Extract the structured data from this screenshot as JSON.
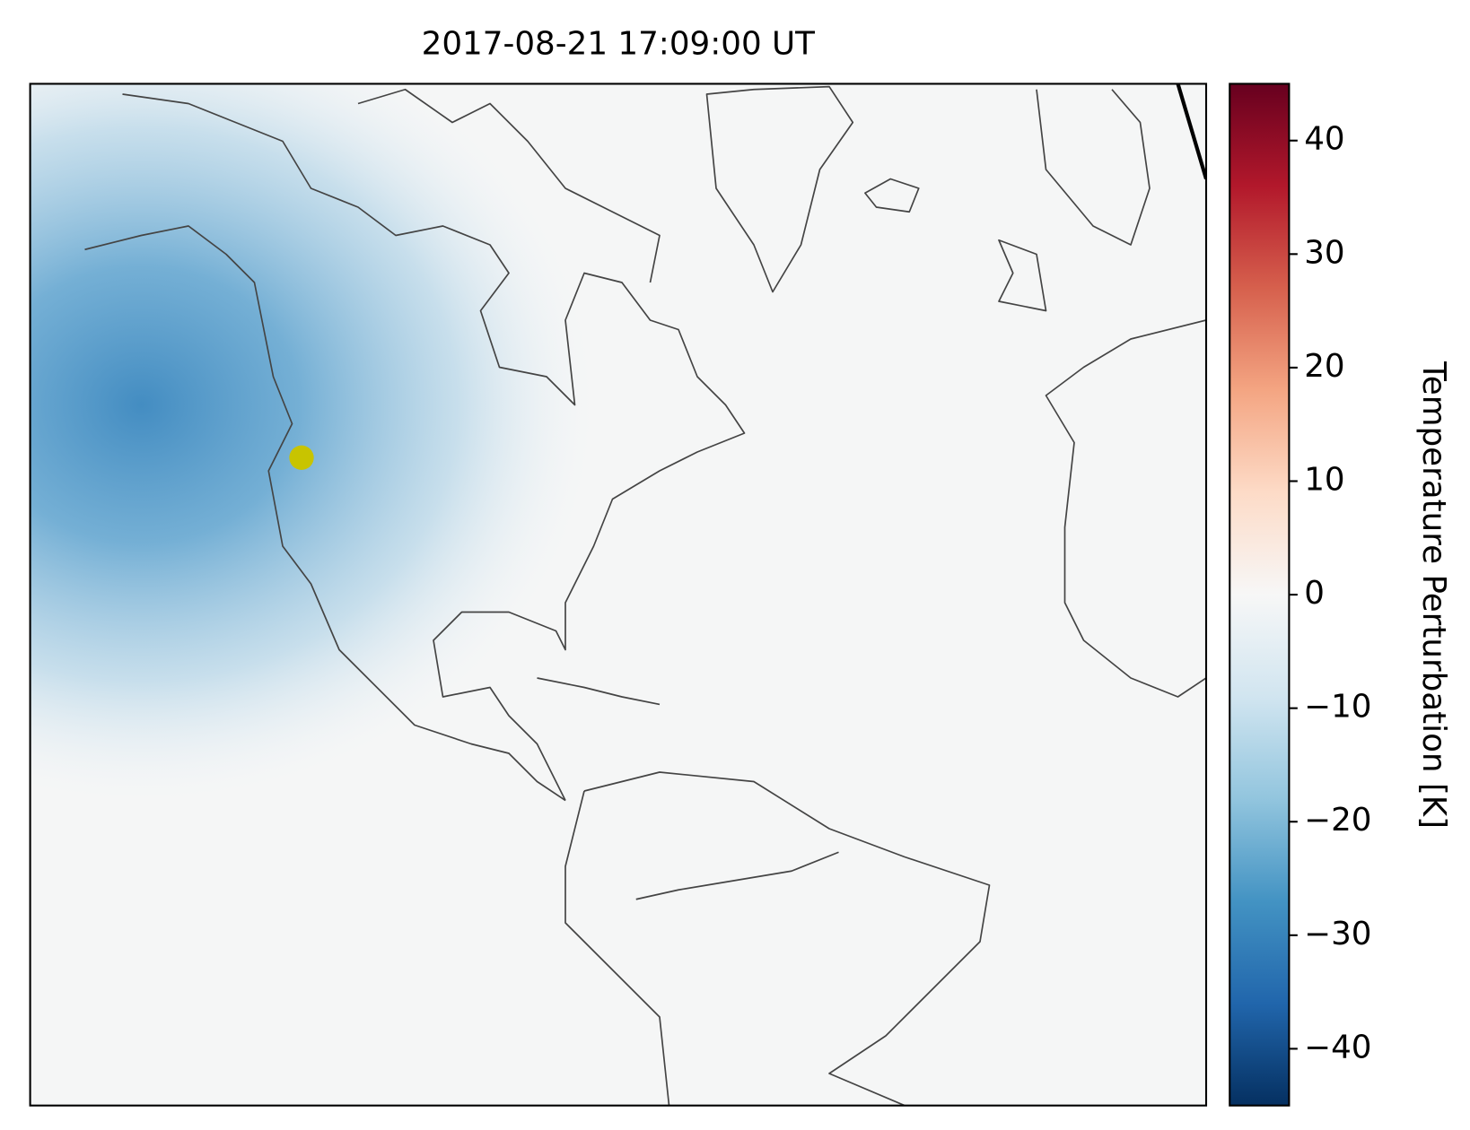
{
  "map": {
    "title": "2017-08-21 17:09:00 UT",
    "colorbar": {
      "label": "Temperature Perturbation [K]",
      "lim": [
        -45,
        45
      ],
      "ticks": [
        {
          "value": -40,
          "label": "−40"
        },
        {
          "value": -30,
          "label": "−30"
        },
        {
          "value": -20,
          "label": "−20"
        },
        {
          "value": -10,
          "label": "−10"
        },
        0,
        10,
        20,
        30,
        40
      ],
      "colors": [
        "#053061",
        "#2166ac",
        "#4393c3",
        "#92c5de",
        "#d1e5f0",
        "#f7f7f7",
        "#fddbc7",
        "#f4a582",
        "#d6604d",
        "#b2182b",
        "#67001f"
      ]
    }
  }
}
